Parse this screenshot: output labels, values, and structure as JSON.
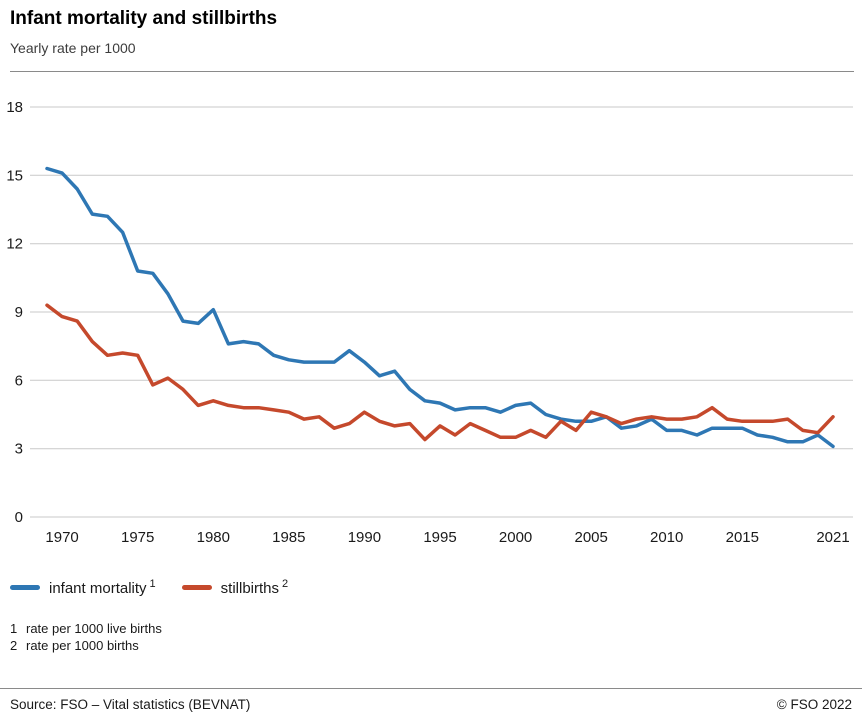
{
  "header": {
    "title": "Infant mortality and stillbirths",
    "subtitle": "Yearly rate per 1000"
  },
  "legend": [
    {
      "label": "infant mortality",
      "sup": "1"
    },
    {
      "label": "stillbirths",
      "sup": "2"
    }
  ],
  "footnotes": [
    {
      "num": "1",
      "text": "rate per 1000 live births"
    },
    {
      "num": "2",
      "text": "rate per 1000 births"
    }
  ],
  "footer": {
    "source": "Source: FSO – Vital statistics (BEVNAT)",
    "copyright": "© FSO 2022"
  },
  "colors": {
    "infant_mortality": "#2e77b4",
    "stillbirths": "#c5492c",
    "gridline": "#c9c9c9",
    "text": "#1a1a1a"
  },
  "chart_data": {
    "type": "line",
    "title": "Infant mortality and stillbirths",
    "subtitle": "Yearly rate per 1000",
    "xlabel": "",
    "ylabel": "Yearly rate per 1000",
    "ylim": [
      0,
      18
    ],
    "yticks": [
      0,
      3,
      6,
      9,
      12,
      15,
      18
    ],
    "xticks": [
      1970,
      1975,
      1980,
      1985,
      1990,
      1995,
      2000,
      2005,
      2010,
      2015,
      2021
    ],
    "grid": true,
    "legend_position": "bottom",
    "x": [
      1969,
      1970,
      1971,
      1972,
      1973,
      1974,
      1975,
      1976,
      1977,
      1978,
      1979,
      1980,
      1981,
      1982,
      1983,
      1984,
      1985,
      1986,
      1987,
      1988,
      1989,
      1990,
      1991,
      1992,
      1993,
      1994,
      1995,
      1996,
      1997,
      1998,
      1999,
      2000,
      2001,
      2002,
      2003,
      2004,
      2005,
      2006,
      2007,
      2008,
      2009,
      2010,
      2011,
      2012,
      2013,
      2014,
      2015,
      2016,
      2017,
      2018,
      2019,
      2020,
      2021
    ],
    "series": [
      {
        "name": "infant mortality",
        "color": "#2e77b4",
        "values": [
          15.3,
          15.1,
          14.4,
          13.3,
          13.2,
          12.5,
          10.8,
          10.7,
          9.8,
          8.6,
          8.5,
          9.1,
          7.6,
          7.7,
          7.6,
          7.1,
          6.9,
          6.8,
          6.8,
          6.8,
          7.3,
          6.8,
          6.2,
          6.4,
          5.6,
          5.1,
          5.0,
          4.7,
          4.8,
          4.8,
          4.6,
          4.9,
          5.0,
          4.5,
          4.3,
          4.2,
          4.2,
          4.4,
          3.9,
          4.0,
          4.3,
          3.8,
          3.8,
          3.6,
          3.9,
          3.9,
          3.9,
          3.6,
          3.5,
          3.3,
          3.3,
          3.6,
          3.1
        ]
      },
      {
        "name": "stillbirths",
        "color": "#c5492c",
        "values": [
          9.3,
          8.8,
          8.6,
          7.7,
          7.1,
          7.2,
          7.1,
          5.8,
          6.1,
          5.6,
          4.9,
          5.1,
          4.9,
          4.8,
          4.8,
          4.7,
          4.6,
          4.3,
          4.4,
          3.9,
          4.1,
          4.6,
          4.2,
          4.0,
          4.1,
          3.4,
          4.0,
          3.6,
          4.1,
          3.8,
          3.5,
          3.5,
          3.8,
          3.5,
          4.2,
          3.8,
          4.6,
          4.4,
          4.1,
          4.3,
          4.4,
          4.3,
          4.3,
          4.4,
          4.8,
          4.3,
          4.2,
          4.2,
          4.2,
          4.3,
          3.8,
          3.7,
          4.4
        ]
      }
    ]
  }
}
